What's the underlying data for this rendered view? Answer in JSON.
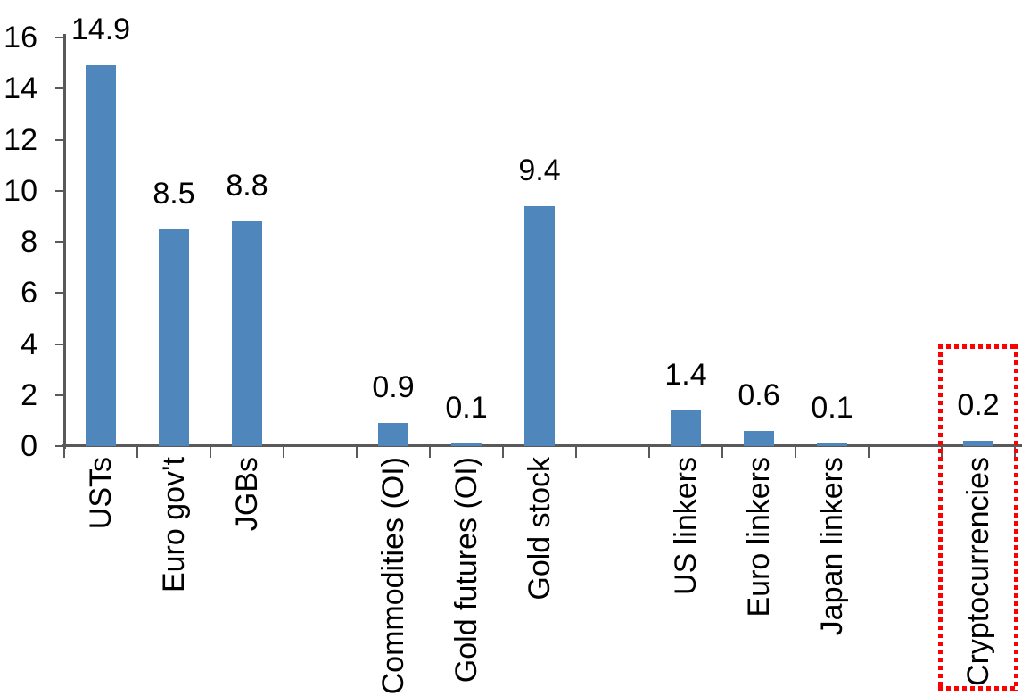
{
  "chart_data": {
    "type": "bar",
    "title": "",
    "xlabel": "",
    "ylabel": "",
    "categories": [
      "USTs",
      "Euro gov't",
      "JGBs",
      "",
      "Commodities (OI)",
      "Gold futures (OI)",
      "Gold stock",
      "",
      "US linkers",
      "Euro linkers",
      "Japan linkers",
      "",
      "Cryptocurrencies"
    ],
    "values": [
      14.9,
      8.5,
      8.8,
      null,
      0.9,
      0.1,
      9.4,
      null,
      1.4,
      0.6,
      0.1,
      null,
      0.2
    ],
    "data_labels": [
      "14.9",
      "8.5",
      "8.8",
      "",
      "0.9",
      "0.1",
      "9.4",
      "",
      "1.4",
      "0.6",
      "0.1",
      "",
      "0.2"
    ],
    "ylim": [
      0,
      16
    ],
    "y_ticks": [
      0,
      2,
      4,
      6,
      8,
      10,
      12,
      14,
      16
    ],
    "grid": false,
    "legend": false,
    "bar_color": "#4F86BC",
    "axis_color": "#595959",
    "text_color": "#000000",
    "highlight": {
      "target": "Cryptocurrencies",
      "slot_index": 12,
      "style": "red-dotted-box",
      "color": "#FF0000"
    }
  }
}
